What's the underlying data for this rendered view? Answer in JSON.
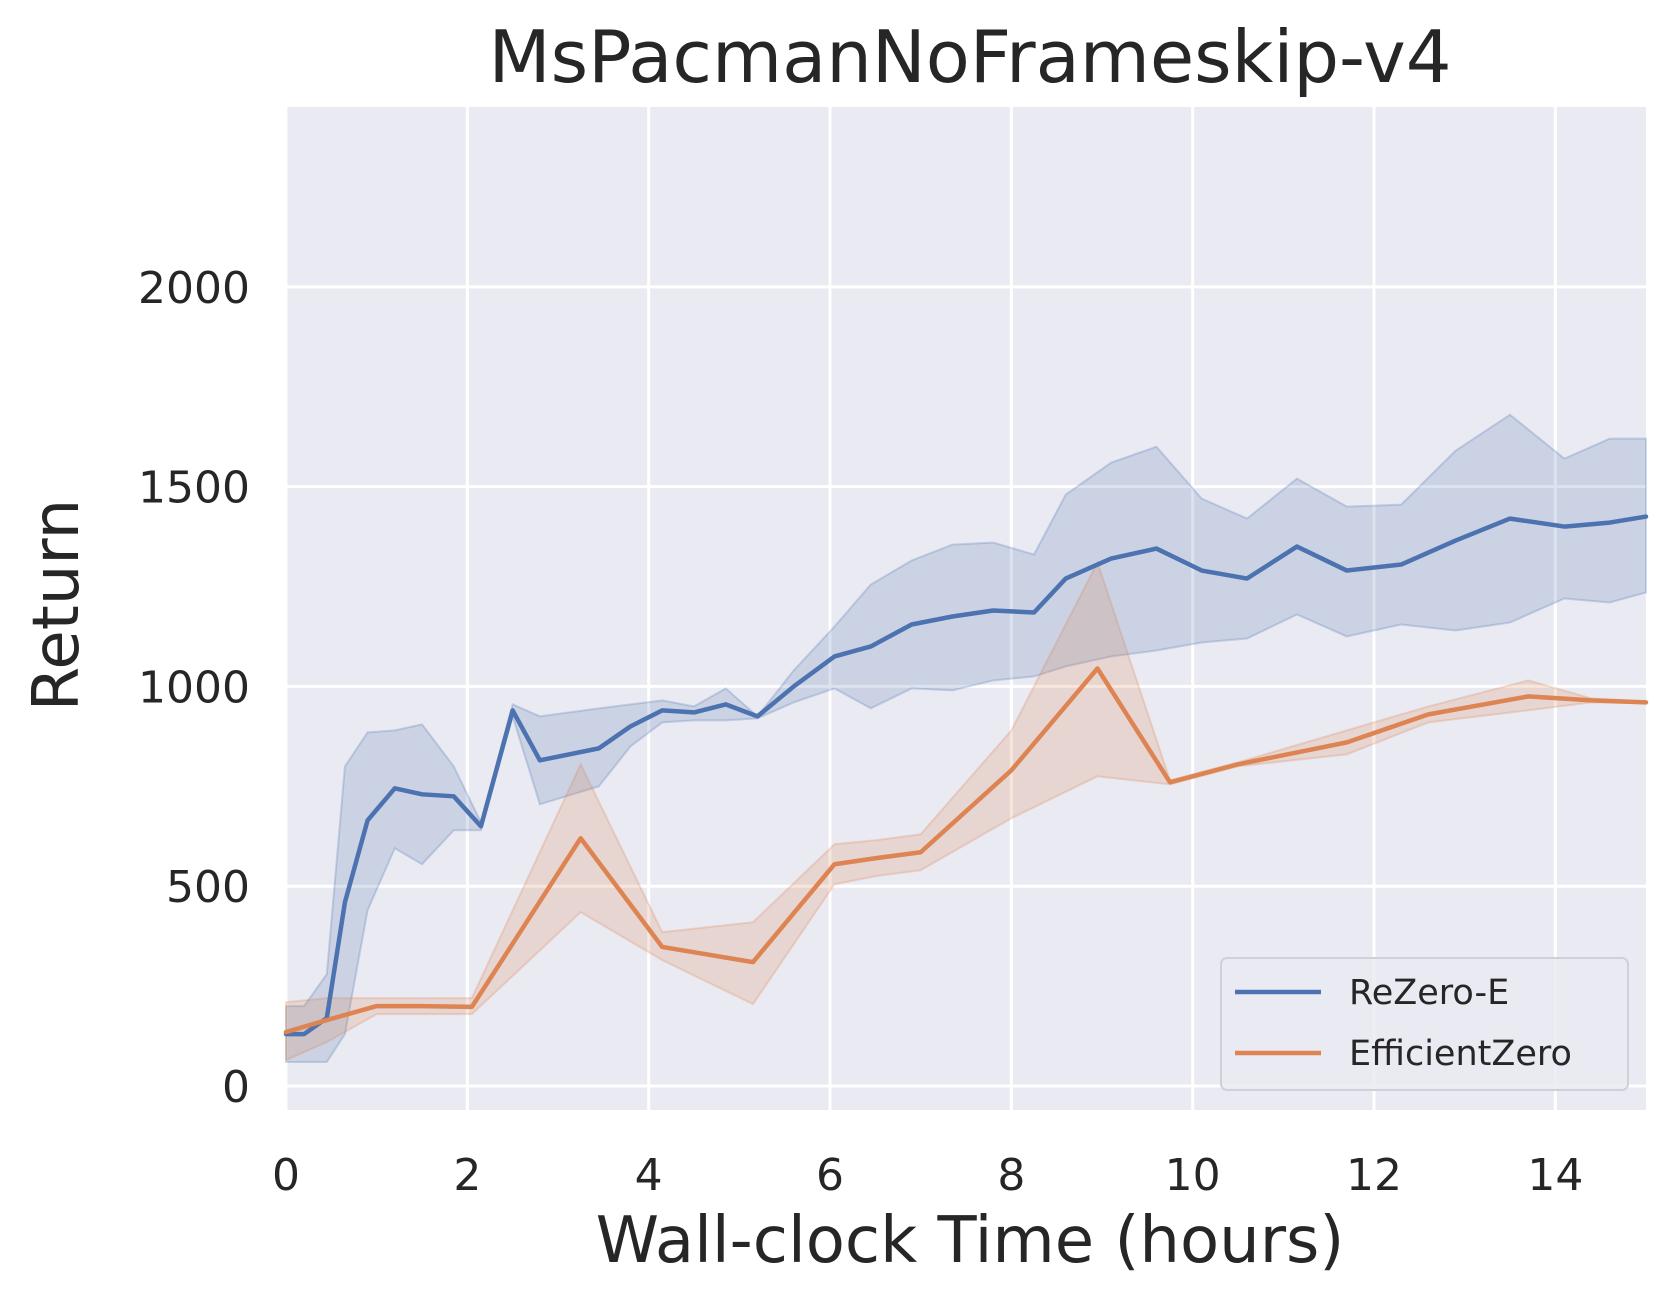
{
  "chart_data": {
    "type": "line",
    "title": "MsPacmanNoFrameskip-v4",
    "xlabel": "Wall-clock Time (hours)",
    "ylabel": "Return",
    "xlim": [
      0,
      15
    ],
    "ylim": [
      -60,
      2450
    ],
    "xticks": [
      0,
      2,
      4,
      6,
      8,
      10,
      12,
      14
    ],
    "yticks": [
      0,
      500,
      1000,
      1500,
      2000
    ],
    "grid": true,
    "legend_position": "lower-right",
    "series": [
      {
        "name": "ReZero-E",
        "color": "#4c72b0",
        "x": [
          0.0,
          0.2,
          0.45,
          0.65,
          0.9,
          1.2,
          1.5,
          1.85,
          2.15,
          2.5,
          2.8,
          3.45,
          3.8,
          4.15,
          4.5,
          4.85,
          5.2,
          5.6,
          6.05,
          6.45,
          6.9,
          7.35,
          7.8,
          8.25,
          8.6,
          9.1,
          9.6,
          10.1,
          10.6,
          11.15,
          11.7,
          12.3,
          12.9,
          13.5,
          14.1,
          14.6,
          15.0
        ],
        "y": [
          130,
          130,
          170,
          460,
          665,
          745,
          730,
          725,
          650,
          940,
          815,
          845,
          900,
          940,
          935,
          955,
          925,
          1000,
          1075,
          1100,
          1155,
          1175,
          1190,
          1185,
          1270,
          1320,
          1345,
          1290,
          1270,
          1350,
          1290,
          1305,
          1365,
          1420,
          1400,
          1410,
          1425
        ],
        "upper": [
          200,
          200,
          280,
          800,
          885,
          890,
          905,
          800,
          660,
          955,
          925,
          945,
          955,
          965,
          950,
          995,
          925,
          1040,
          1150,
          1255,
          1315,
          1355,
          1360,
          1330,
          1480,
          1560,
          1600,
          1470,
          1420,
          1520,
          1450,
          1455,
          1590,
          1680,
          1570,
          1620,
          1620
        ],
        "lower": [
          60,
          60,
          60,
          130,
          440,
          595,
          555,
          640,
          640,
          925,
          705,
          750,
          850,
          910,
          915,
          915,
          920,
          960,
          995,
          945,
          995,
          990,
          1015,
          1025,
          1050,
          1075,
          1090,
          1110,
          1120,
          1180,
          1125,
          1155,
          1140,
          1160,
          1220,
          1210,
          1235
        ]
      },
      {
        "name": "EfficientZero",
        "color": "#dd8452",
        "x": [
          0.0,
          0.45,
          1.0,
          1.5,
          2.05,
          3.25,
          4.15,
          5.15,
          6.05,
          6.5,
          7.0,
          8.0,
          8.95,
          9.75,
          10.5,
          11.7,
          12.6,
          13.7,
          14.4,
          15.0
        ],
        "y": [
          135,
          165,
          200,
          200,
          198,
          620,
          348,
          310,
          555,
          570,
          585,
          790,
          1045,
          760,
          805,
          860,
          930,
          975,
          965,
          960
        ],
        "upper": [
          210,
          220,
          220,
          220,
          220,
          805,
          385,
          410,
          605,
          615,
          630,
          890,
          1310,
          765,
          810,
          890,
          950,
          1015,
          970,
          962
        ],
        "lower": [
          65,
          110,
          180,
          180,
          180,
          435,
          315,
          205,
          505,
          525,
          540,
          670,
          775,
          755,
          800,
          830,
          910,
          940,
          960,
          958
        ]
      }
    ]
  }
}
